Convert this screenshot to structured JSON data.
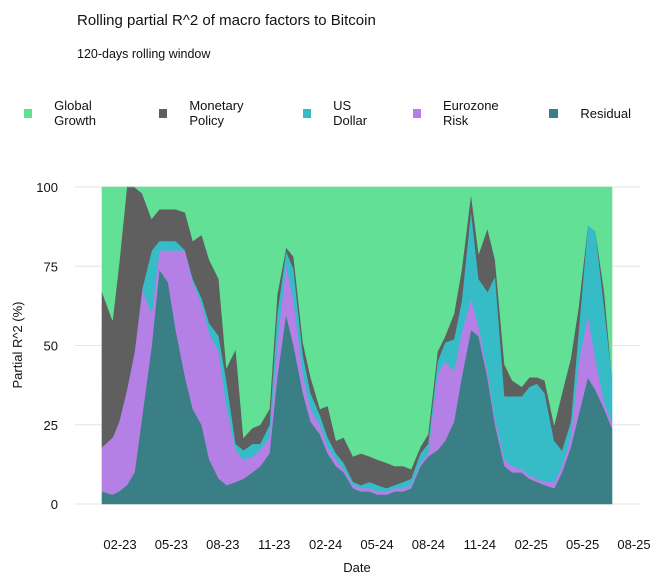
{
  "chart_data": {
    "type": "area",
    "stacked": true,
    "title": "Rolling partial R^2 of macro factors to Bitcoin",
    "subtitle": "120-days rolling window",
    "xlabel": "Date",
    "ylabel": "Partial R^2 (%)",
    "ylim": [
      0,
      100
    ],
    "yticks": [
      "0",
      "25",
      "50",
      "75",
      "100"
    ],
    "xticks": [
      "02-23",
      "05-23",
      "08-23",
      "11-23",
      "02-24",
      "05-24",
      "08-24",
      "11-24",
      "02-25",
      "05-25",
      "08-25"
    ],
    "grid": "horizontal",
    "legend_position": "top",
    "x": [
      "2023-01-01",
      "2023-01-20",
      "2023-02-01",
      "2023-02-15",
      "2023-03-01",
      "2023-03-15",
      "2023-04-01",
      "2023-04-15",
      "2023-05-01",
      "2023-05-15",
      "2023-06-01",
      "2023-06-15",
      "2023-07-01",
      "2023-07-15",
      "2023-08-01",
      "2023-08-15",
      "2023-09-01",
      "2023-09-15",
      "2023-10-01",
      "2023-10-15",
      "2023-11-01",
      "2023-11-15",
      "2023-12-01",
      "2023-12-15",
      "2024-01-01",
      "2024-01-15",
      "2024-02-01",
      "2024-02-15",
      "2024-03-01",
      "2024-03-15",
      "2024-04-01",
      "2024-04-15",
      "2024-05-01",
      "2024-05-15",
      "2024-06-01",
      "2024-06-15",
      "2024-07-01",
      "2024-07-15",
      "2024-08-01",
      "2024-08-15",
      "2024-09-01",
      "2024-09-15",
      "2024-10-01",
      "2024-10-15",
      "2024-11-01",
      "2024-11-15",
      "2024-12-01",
      "2024-12-15",
      "2025-01-01",
      "2025-01-15",
      "2025-02-01",
      "2025-02-15",
      "2025-03-01",
      "2025-03-15",
      "2025-04-01",
      "2025-04-15",
      "2025-05-01",
      "2025-05-15",
      "2025-06-01",
      "2025-06-15",
      "2025-07-01",
      "2025-07-15"
    ],
    "series": [
      {
        "name": "Residual",
        "color": "#3a7f86",
        "values": [
          4,
          3,
          4,
          6,
          10,
          28,
          50,
          74,
          70,
          55,
          40,
          30,
          25,
          14,
          8,
          6,
          7,
          8,
          10,
          12,
          16,
          40,
          60,
          50,
          35,
          26,
          22,
          16,
          12,
          10,
          5,
          4,
          4,
          3,
          3,
          4,
          4,
          5,
          12,
          15,
          17,
          20,
          26,
          40,
          55,
          53,
          40,
          25,
          12,
          10,
          10,
          8,
          7,
          6,
          5,
          10,
          18,
          28,
          40,
          36,
          30,
          24
        ]
      },
      {
        "name": "Eurozone Risk",
        "color": "#b580e6",
        "values": [
          14,
          18,
          22,
          30,
          38,
          40,
          10,
          6,
          10,
          25,
          40,
          40,
          38,
          40,
          40,
          25,
          10,
          6,
          5,
          5,
          5,
          10,
          16,
          14,
          6,
          4,
          3,
          2,
          2,
          1,
          1,
          1,
          1,
          1,
          1,
          1,
          1,
          1,
          1,
          1,
          24,
          25,
          16,
          14,
          10,
          3,
          2,
          2,
          2,
          2,
          1,
          1,
          1,
          1,
          2,
          2,
          3,
          16,
          20,
          10,
          2,
          2
        ]
      },
      {
        "name": "US Dollar",
        "color": "#35bcc6",
        "values": [
          0,
          0,
          0,
          0,
          0,
          0,
          20,
          3,
          3,
          3,
          0,
          1,
          2,
          3,
          5,
          8,
          2,
          3,
          4,
          2,
          4,
          10,
          4,
          10,
          6,
          5,
          3,
          3,
          2,
          2,
          1,
          1,
          2,
          2,
          1,
          1,
          2,
          2,
          3,
          3,
          4,
          6,
          10,
          10,
          28,
          15,
          25,
          45,
          20,
          22,
          23,
          28,
          30,
          28,
          13,
          5,
          5,
          10,
          28,
          40,
          30,
          14
        ]
      },
      {
        "name": "Monetary Policy",
        "color": "#5f5f5f",
        "values": [
          49,
          37,
          50,
          64,
          52,
          30,
          10,
          10,
          10,
          10,
          12,
          12,
          20,
          20,
          18,
          4,
          30,
          4,
          5,
          6,
          5,
          6,
          1,
          4,
          4,
          5,
          2,
          10,
          4,
          8,
          8,
          10,
          8,
          8,
          8,
          6,
          5,
          3,
          2,
          3,
          3,
          2,
          8,
          10,
          5,
          8,
          20,
          5,
          10,
          5,
          3,
          3,
          2,
          4,
          5,
          18,
          20,
          8,
          0,
          0,
          5,
          0
        ]
      },
      {
        "name": "Global Growth",
        "color": "#62e095",
        "values": [
          33,
          42,
          24,
          0,
          0,
          2,
          10,
          7,
          7,
          7,
          8,
          17,
          15,
          23,
          29,
          57,
          51,
          79,
          76,
          75,
          70,
          34,
          19,
          22,
          49,
          60,
          70,
          69,
          80,
          79,
          85,
          84,
          85,
          86,
          87,
          88,
          88,
          89,
          82,
          78,
          52,
          47,
          40,
          26,
          2,
          21,
          13,
          23,
          56,
          61,
          63,
          60,
          60,
          61,
          75,
          65,
          54,
          38,
          12,
          14,
          33,
          60
        ]
      }
    ]
  },
  "legend_order": [
    "Global Growth",
    "Monetary Policy",
    "US Dollar",
    "Eurozone Risk",
    "Residual"
  ]
}
